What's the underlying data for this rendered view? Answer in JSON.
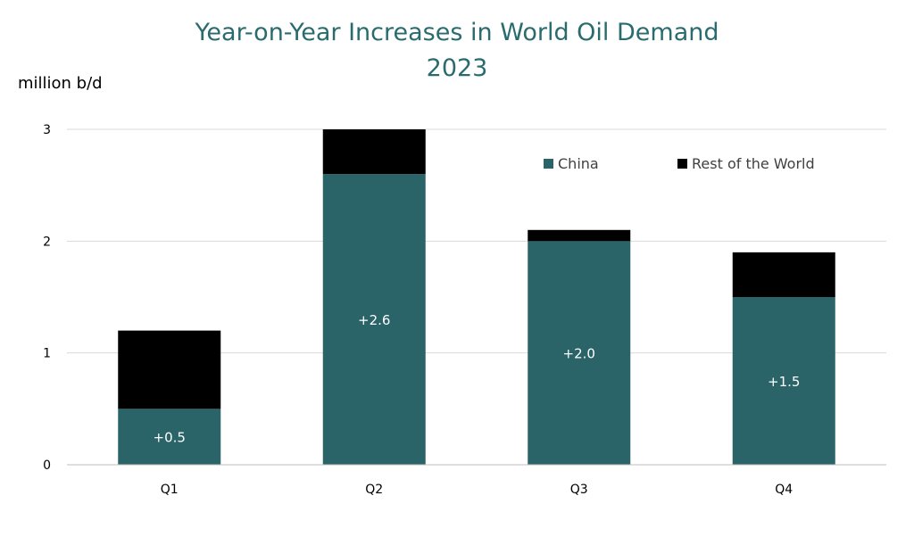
{
  "chart_data": {
    "type": "bar",
    "stacked": true,
    "title": "Year-on-Year Increases in World Oil Demand",
    "subtitle": "2023",
    "ylabel": "million b/d",
    "xlabel": "",
    "categories": [
      "Q1",
      "Q2",
      "Q3",
      "Q4"
    ],
    "ylim": [
      0,
      3
    ],
    "yticks": [
      0,
      1,
      2,
      3
    ],
    "grid": true,
    "legend_position": "top-right",
    "series": [
      {
        "name": "China",
        "color": "#2a6469",
        "values": [
          0.5,
          2.6,
          2.0,
          1.5
        ],
        "data_labels": [
          "+0.5",
          "+2.6",
          "+2.0",
          "+1.5"
        ]
      },
      {
        "name": "Rest of the World",
        "color": "#000000",
        "values": [
          0.7,
          0.4,
          0.1,
          0.4
        ]
      }
    ],
    "colors": {
      "title": "#2a6b6e",
      "grid": "#d9d9d9",
      "axis": "#bfbfbf",
      "text": "#000000"
    }
  }
}
